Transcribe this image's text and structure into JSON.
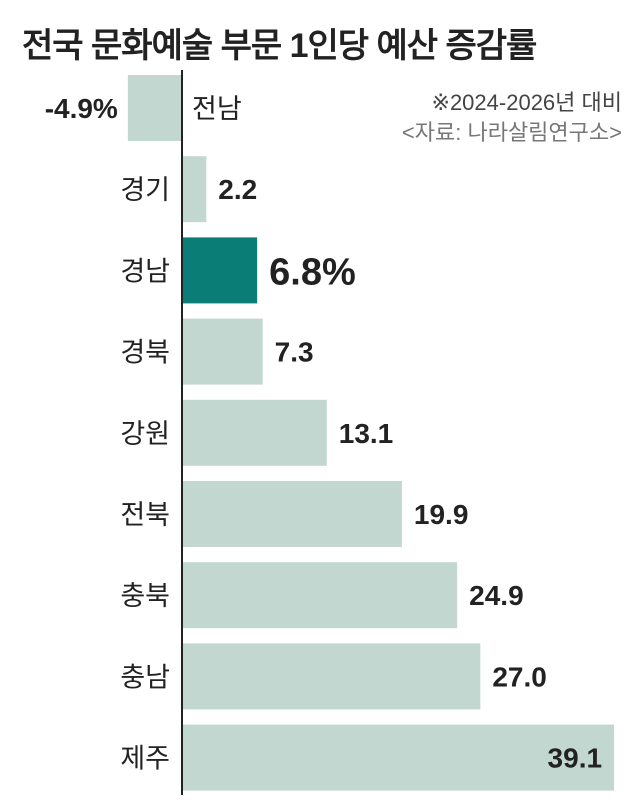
{
  "chart_data": {
    "type": "bar",
    "orientation": "horizontal",
    "title": "전국 문화예술 부문 1인당 예산 증감률",
    "note": "※2024-2026년 대비",
    "source": "<자료: 나라살림연구소>",
    "categories": [
      "전남",
      "경기",
      "경남",
      "경북",
      "강원",
      "전북",
      "충북",
      "충남",
      "제주"
    ],
    "values": [
      -4.9,
      2.2,
      6.8,
      7.3,
      13.1,
      19.9,
      24.9,
      27.0,
      39.1
    ],
    "data_labels": [
      "-4.9%",
      "2.2",
      "6.8%",
      "7.3",
      "13.1",
      "19.9",
      "24.9",
      "27.0",
      "39.1"
    ],
    "highlight": "경남",
    "unit": "%",
    "xlim": [
      -4.9,
      39.1
    ],
    "grid": false,
    "colors": {
      "bar": "#c2d7cf",
      "highlight": "#0b7d77",
      "axis": "#222222"
    }
  }
}
